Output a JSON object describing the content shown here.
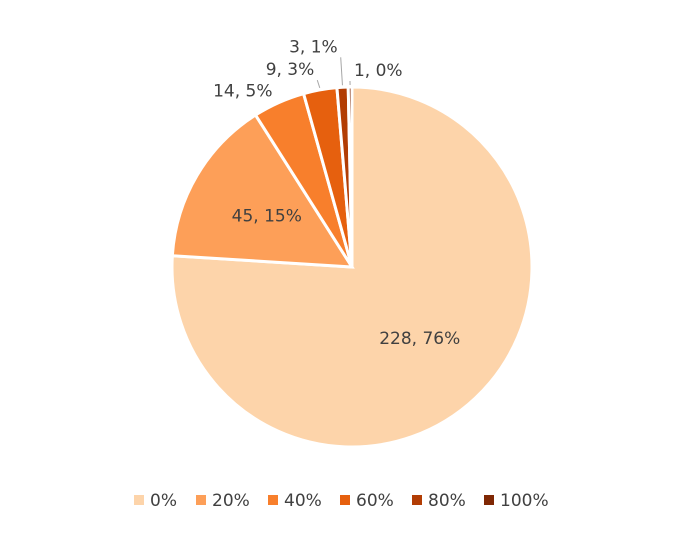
{
  "chart_data": {
    "type": "pie",
    "categories": [
      "0%",
      "20%",
      "40%",
      "60%",
      "80%",
      "100%"
    ],
    "values": [
      228,
      45,
      14,
      9,
      3,
      1
    ],
    "value_labels": [
      "228, 76%",
      "45, 15%",
      "14, 5%",
      "9, 3%",
      "3, 1%",
      "1, 0%"
    ],
    "colors": [
      "#fdd4aa",
      "#fd9f58",
      "#f87f2c",
      "#e6600e",
      "#b23d04",
      "#7f2704"
    ],
    "legend": "bottom"
  }
}
